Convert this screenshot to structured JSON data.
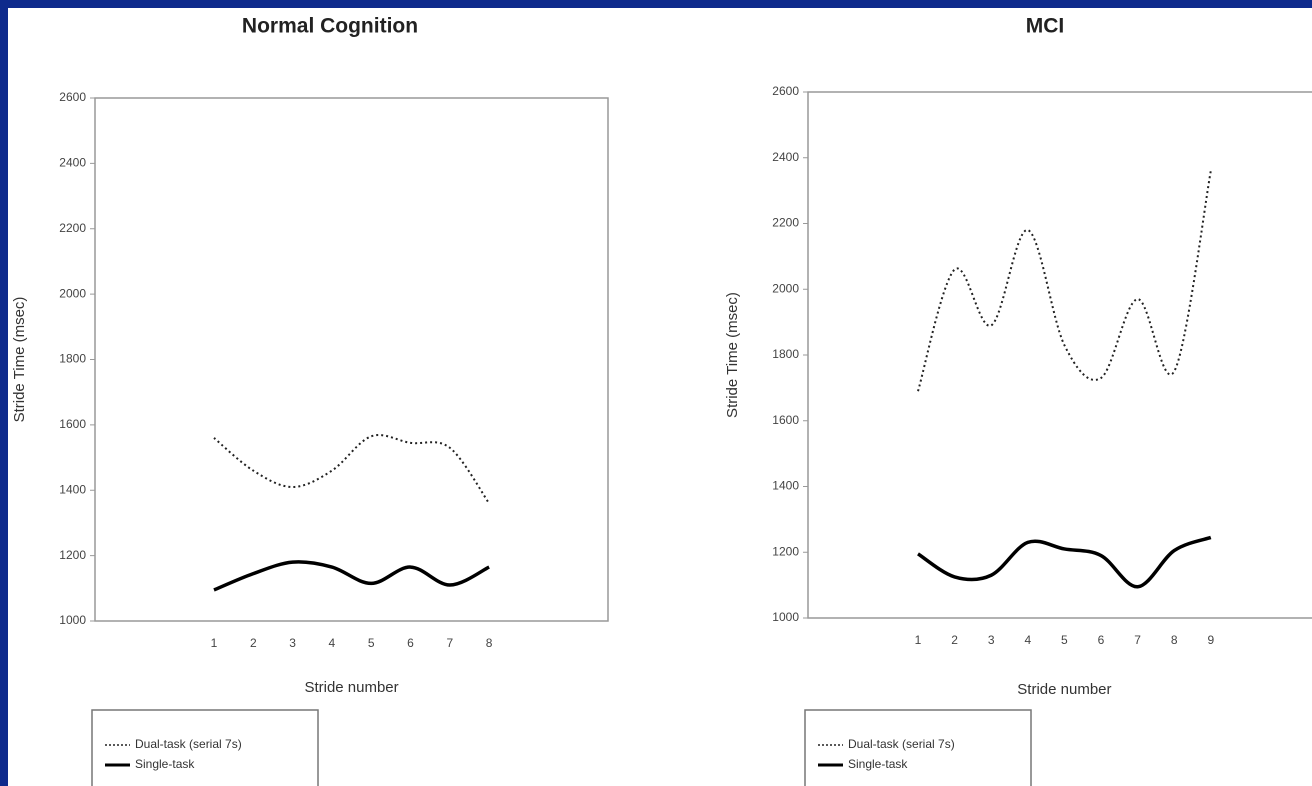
{
  "chart_data": [
    {
      "type": "line",
      "title": "Normal Cognition",
      "y_label": "Stride Time (msec)",
      "x_label": "Stride number",
      "categories": [
        "1",
        "2",
        "3",
        "4",
        "5",
        "6",
        "7",
        "8"
      ],
      "ylim": [
        1000,
        2600
      ],
      "yticks": [
        1000,
        1200,
        1400,
        1600,
        1800,
        2000,
        2200,
        2400,
        2600
      ],
      "series": [
        {
          "name": "Dual-task (serial 7s)",
          "color": "#222222",
          "linestyle": "dotted",
          "values": [
            1560,
            1460,
            1410,
            1460,
            1565,
            1545,
            1530,
            1360
          ]
        },
        {
          "name": "Single-task",
          "color": "#000000",
          "linestyle": "solid",
          "values": [
            1095,
            1145,
            1180,
            1165,
            1115,
            1165,
            1110,
            1165
          ]
        }
      ]
    },
    {
      "type": "line",
      "title": "MCI",
      "y_label": "Stride Time (msec)",
      "x_label": "Stride number",
      "categories": [
        "1",
        "2",
        "3",
        "4",
        "5",
        "6",
        "7",
        "8",
        "9"
      ],
      "ylim": [
        1000,
        2600
      ],
      "yticks": [
        1000,
        1200,
        1400,
        1600,
        1800,
        2000,
        2200,
        2400,
        2600
      ],
      "series": [
        {
          "name": "Dual-task (serial 7s)",
          "color": "#222222",
          "linestyle": "dotted",
          "values": [
            1690,
            2060,
            1890,
            2180,
            1830,
            1730,
            1970,
            1750,
            2360
          ]
        },
        {
          "name": "Single-task",
          "color": "#000000",
          "linestyle": "solid",
          "values": [
            1195,
            1125,
            1130,
            1230,
            1210,
            1190,
            1095,
            1205,
            1245
          ]
        }
      ]
    }
  ]
}
